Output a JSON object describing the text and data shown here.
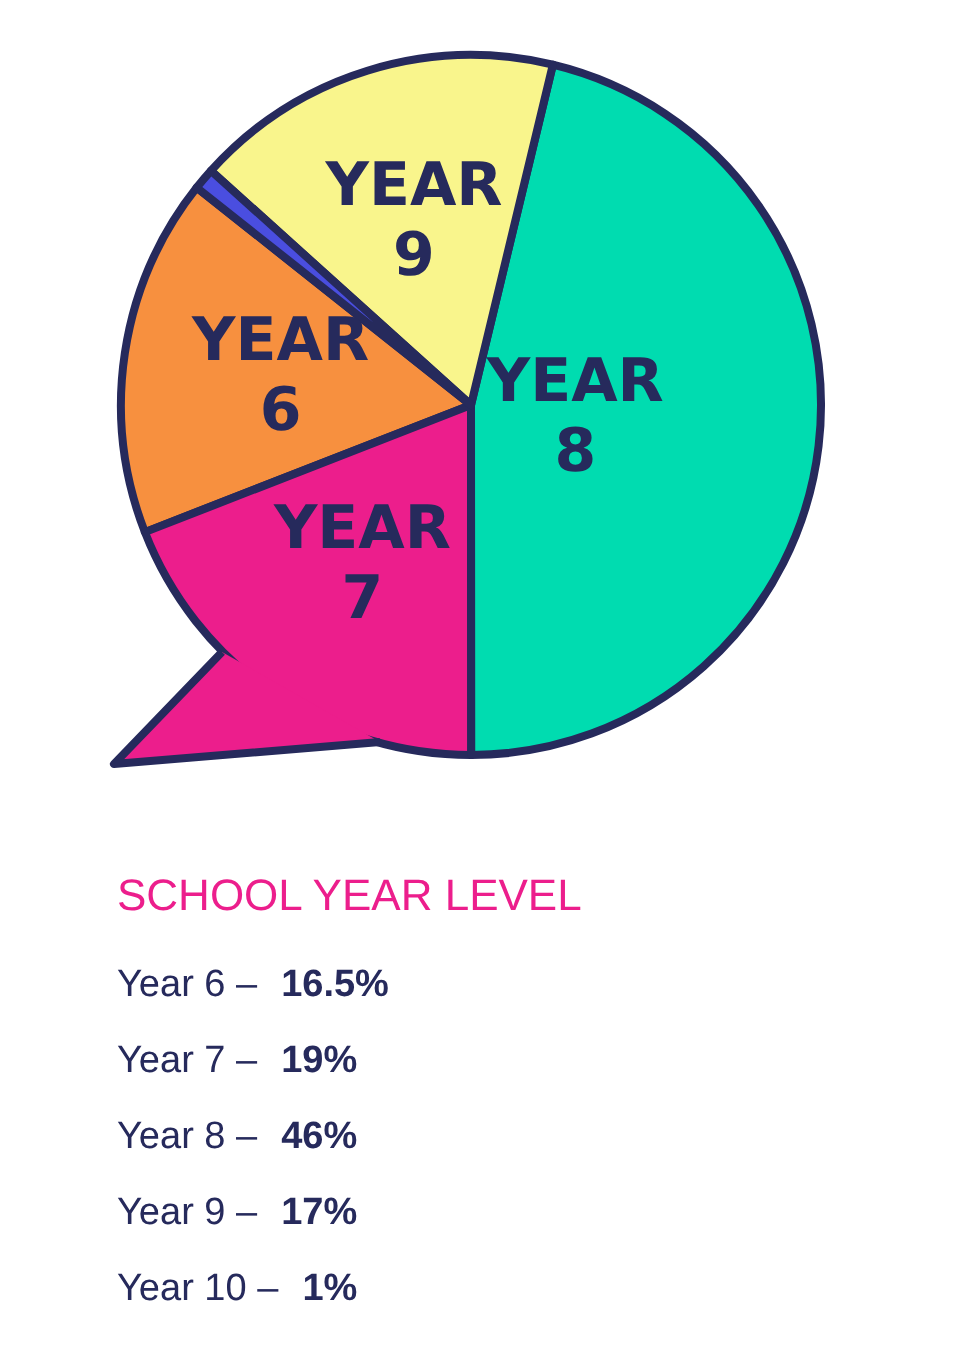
{
  "chart_data": {
    "type": "pie",
    "legend_title": "SCHOOL YEAR LEVEL",
    "categories": [
      "YEAR 6",
      "YEAR 7",
      "YEAR 8",
      "YEAR 9",
      null
    ],
    "values": [
      16.5,
      19,
      46,
      17,
      1
    ],
    "colors": [
      "#f7903f",
      "#ec1e8c",
      "#00dcb0",
      "#f9f58c",
      "#4a4ee0"
    ],
    "annotations": [
      "Year 6 – 16.5%",
      "Year 7 – 19%",
      "Year 8 – 46%",
      "Year 9 – 17%",
      "Year 10 – 1%"
    ]
  }
}
